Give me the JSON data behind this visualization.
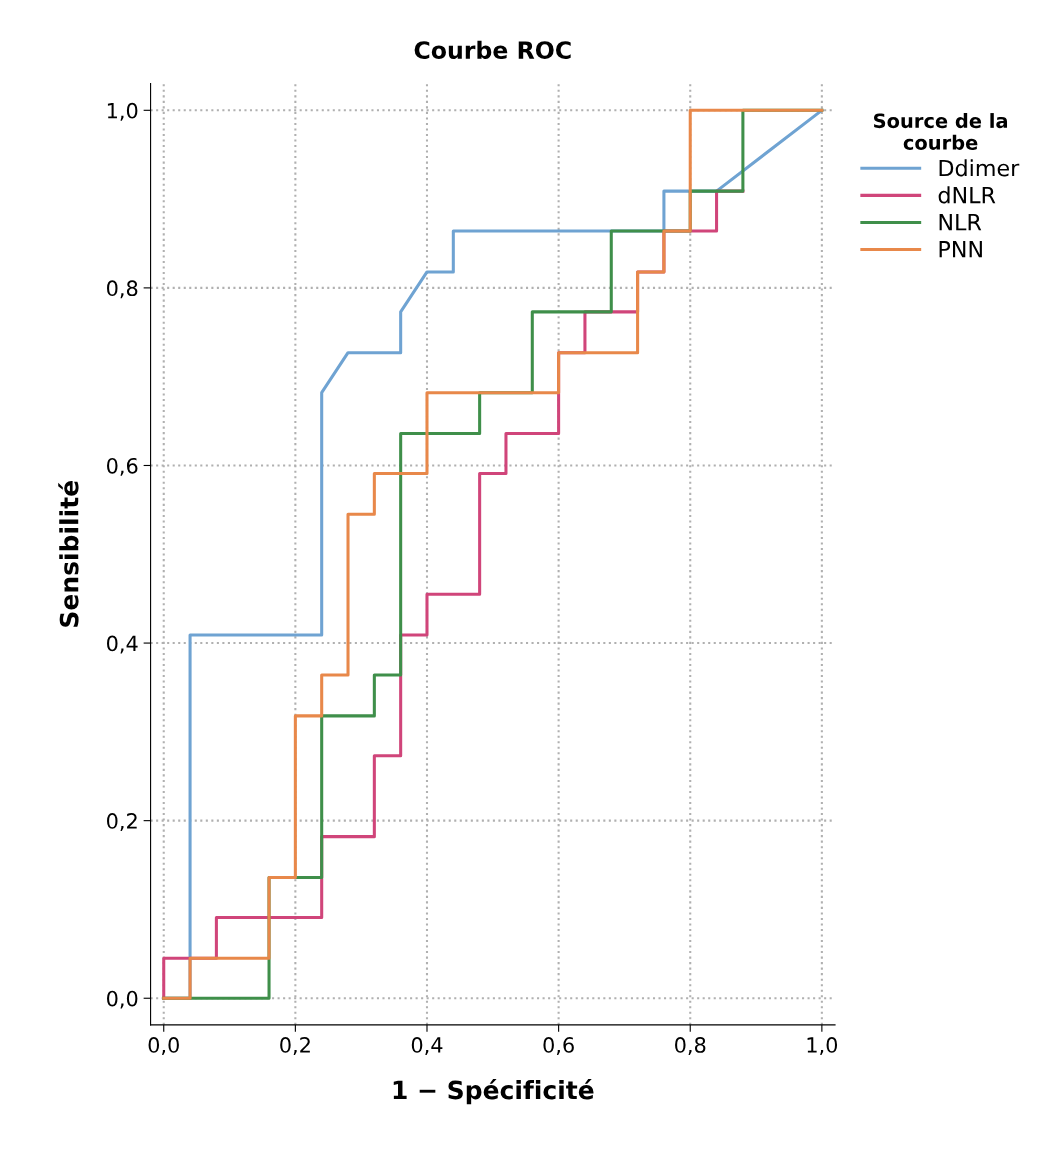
{
  "chart_data": {
    "type": "line",
    "title": "Courbe ROC",
    "xlabel": "1 − Spécificité",
    "ylabel": "Sensibilité",
    "legend_title": "Source de la courbe",
    "legend": "right",
    "grid": true,
    "line_style": "solid",
    "marker": "none",
    "xlim": [
      -0.02,
      1.02
    ],
    "ylim": [
      -0.03,
      1.03
    ],
    "xticks": [
      {
        "value": 0,
        "label": "0,0"
      },
      {
        "value": 0.2,
        "label": "0,2"
      },
      {
        "value": 0.4,
        "label": "0,4"
      },
      {
        "value": 0.6,
        "label": "0,6"
      },
      {
        "value": 0.8,
        "label": "0,8"
      },
      {
        "value": 1.0,
        "label": "1,0"
      }
    ],
    "yticks": [
      {
        "value": 0,
        "label": "0,0"
      },
      {
        "value": 0.2,
        "label": "0,2"
      },
      {
        "value": 0.4,
        "label": "0,4"
      },
      {
        "value": 0.6,
        "label": "0,6"
      },
      {
        "value": 0.8,
        "label": "0,8"
      },
      {
        "value": 1.0,
        "label": "1,0"
      }
    ],
    "series": [
      {
        "name": "Ddimer",
        "color": "#6fa3d2",
        "x": [
          0,
          0.04,
          0.04,
          0.24,
          0.24,
          0.28,
          0.36,
          0.36,
          0.4,
          0.44,
          0.44,
          0.76,
          0.76,
          0.84,
          1.0
        ],
        "values": [
          0,
          0,
          0.409,
          0.409,
          0.682,
          0.727,
          0.727,
          0.773,
          0.818,
          0.818,
          0.864,
          0.864,
          0.909,
          0.909,
          1.0
        ]
      },
      {
        "name": "dNLR",
        "color": "#d0457a",
        "x": [
          0,
          0,
          0.08,
          0.08,
          0.24,
          0.24,
          0.32,
          0.32,
          0.36,
          0.36,
          0.4,
          0.4,
          0.48,
          0.48,
          0.52,
          0.52,
          0.6,
          0.6,
          0.64,
          0.64,
          0.72,
          0.72,
          0.76,
          0.76,
          0.84,
          0.84,
          0.88
        ],
        "values": [
          0,
          0.045,
          0.045,
          0.091,
          0.091,
          0.182,
          0.182,
          0.273,
          0.273,
          0.409,
          0.409,
          0.455,
          0.455,
          0.591,
          0.591,
          0.636,
          0.636,
          0.727,
          0.727,
          0.773,
          0.773,
          0.818,
          0.818,
          0.864,
          0.864,
          0.909,
          0.909
        ]
      },
      {
        "name": "NLR",
        "color": "#3f8f4a",
        "x": [
          0,
          0.16,
          0.16,
          0.24,
          0.24,
          0.32,
          0.32,
          0.36,
          0.36,
          0.48,
          0.48,
          0.56,
          0.56,
          0.68,
          0.68,
          0.8,
          0.8,
          0.88,
          0.88,
          1.0
        ],
        "values": [
          0,
          0,
          0.136,
          0.136,
          0.318,
          0.318,
          0.364,
          0.364,
          0.636,
          0.636,
          0.682,
          0.682,
          0.773,
          0.773,
          0.864,
          0.864,
          0.909,
          0.909,
          1.0,
          1.0
        ]
      },
      {
        "name": "PNN",
        "color": "#e8884a",
        "x": [
          0,
          0.04,
          0.04,
          0.16,
          0.16,
          0.2,
          0.2,
          0.24,
          0.24,
          0.28,
          0.28,
          0.32,
          0.32,
          0.4,
          0.4,
          0.6,
          0.6,
          0.72,
          0.72,
          0.76,
          0.76,
          0.8,
          0.8,
          1.0
        ],
        "values": [
          0,
          0,
          0.045,
          0.045,
          0.136,
          0.136,
          0.318,
          0.318,
          0.364,
          0.364,
          0.545,
          0.545,
          0.591,
          0.591,
          0.682,
          0.682,
          0.727,
          0.727,
          0.818,
          0.818,
          0.864,
          0.864,
          1.0,
          1.0
        ]
      }
    ]
  }
}
